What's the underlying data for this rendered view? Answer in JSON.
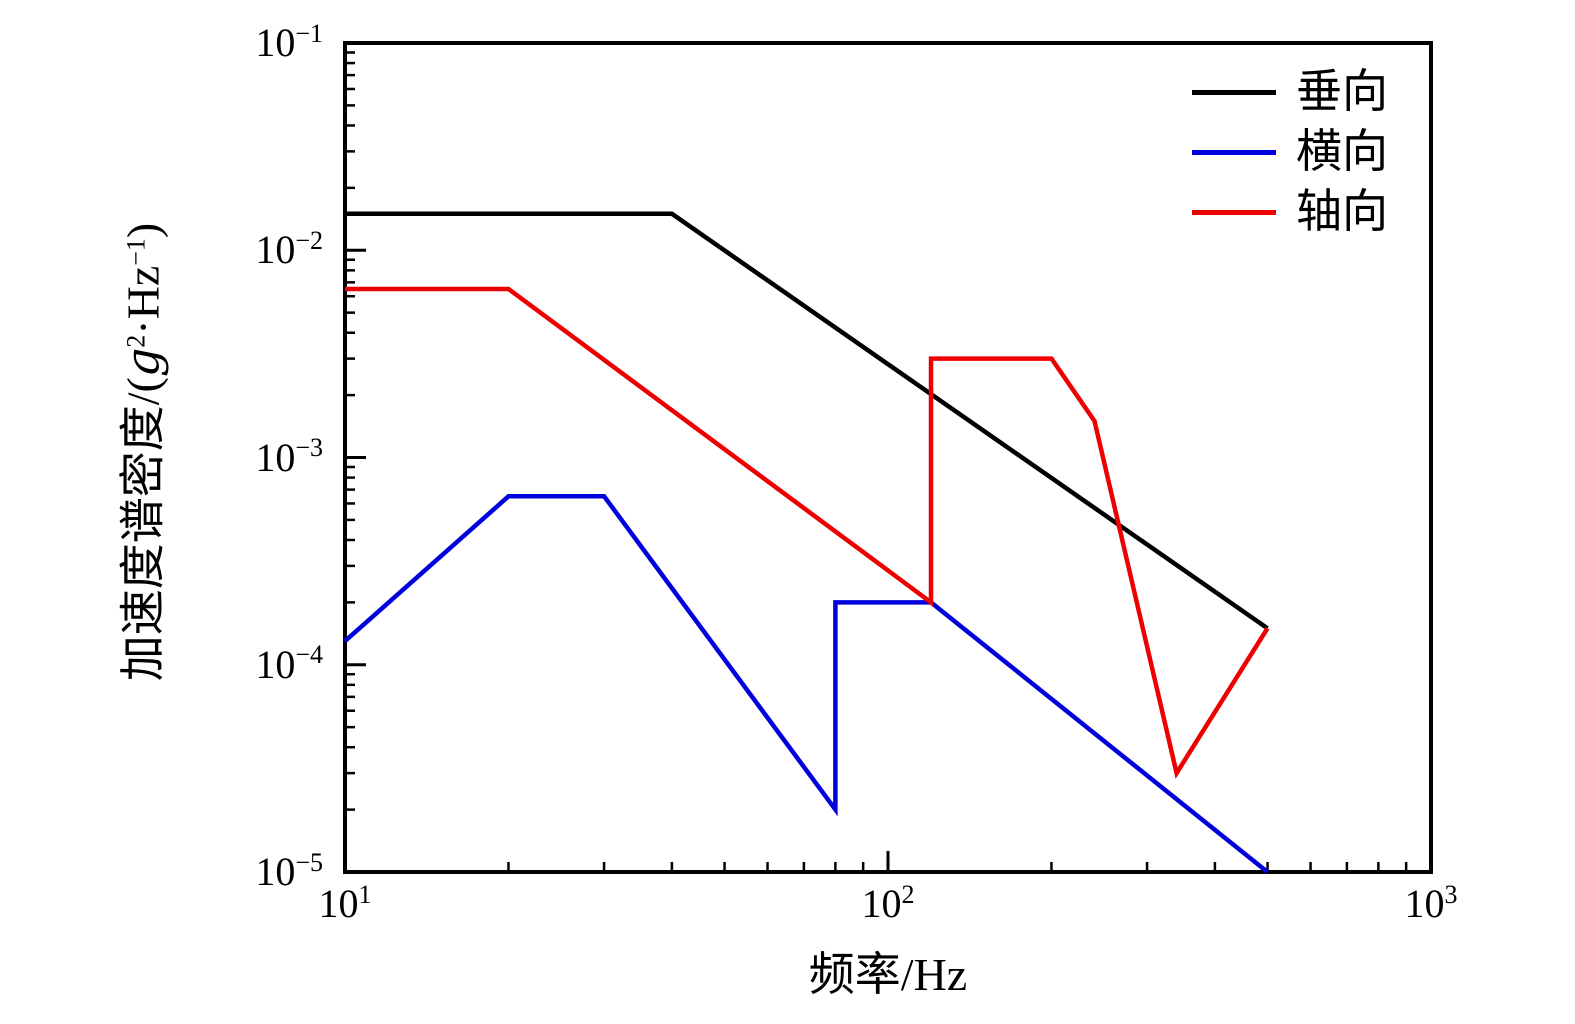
{
  "chart_data": {
    "type": "line",
    "title": "",
    "xlabel": "频率/Hz",
    "ylabel": "加速度谱密度/(g²·Hz⁻¹)",
    "ylabel_parts": {
      "pre": "加速度谱密度/(",
      "g": "g",
      "g_sup": "2",
      "mid": "·Hz",
      "hz_sup": "−1",
      "post": ")"
    },
    "x_scale": "log",
    "y_scale": "log",
    "xlim": [
      10,
      1000
    ],
    "ylim": [
      1e-05,
      0.1
    ],
    "x_tick_exponents": [
      1,
      2,
      3
    ],
    "y_tick_exponents": [
      -1,
      -2,
      -3,
      -4,
      -5
    ],
    "grid": false,
    "legend_position": "top-right-inside",
    "axis_color": "#000000",
    "background_color": "#ffffff",
    "series": [
      {
        "id": "vertical",
        "name": "垂向",
        "color": "#000000",
        "points": [
          [
            10,
            0.015
          ],
          [
            40,
            0.015
          ],
          [
            500,
            0.00015
          ]
        ]
      },
      {
        "id": "lateral",
        "name": "横向",
        "color": "#0000dd",
        "points": [
          [
            10,
            0.00013
          ],
          [
            20,
            0.00065
          ],
          [
            30,
            0.00065
          ],
          [
            80,
            2e-05
          ],
          [
            80,
            0.0002
          ],
          [
            120,
            0.0002
          ],
          [
            500,
            1e-05
          ]
        ]
      },
      {
        "id": "axial",
        "name": "轴向",
        "color": "#ee0000",
        "points": [
          [
            10,
            0.0065
          ],
          [
            20,
            0.0065
          ],
          [
            120,
            0.0002
          ],
          [
            120,
            0.003
          ],
          [
            200,
            0.003
          ],
          [
            240,
            0.0015
          ],
          [
            340,
            3e-05
          ],
          [
            500,
            0.00015
          ]
        ]
      }
    ]
  }
}
